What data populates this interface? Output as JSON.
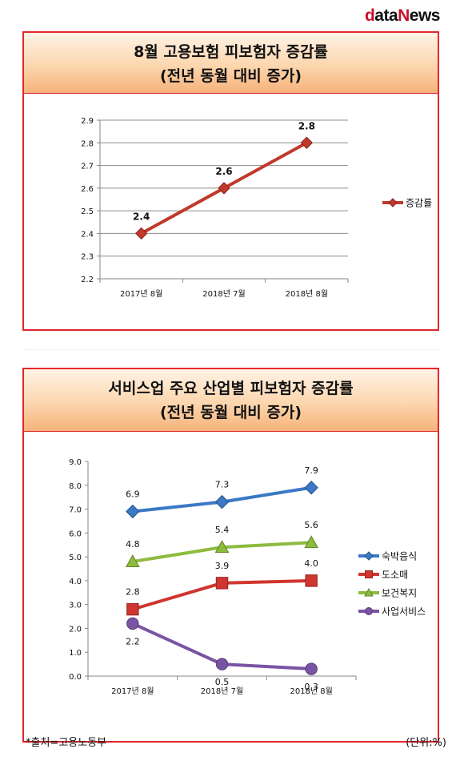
{
  "logo": {
    "p1": "d",
    "p2": "ata",
    "p3": "N",
    "p4": "ews"
  },
  "chart1": {
    "title": "8월 고용보험 피보험자 증감률",
    "subtitle": "(전년 동월 대비 증가)"
  },
  "chart2": {
    "title": "서비스업 주요 산업별 피보험자 증감률",
    "subtitle": "(전년 동월 대비 증가)"
  },
  "footer": {
    "source": "*출처=고용노동부",
    "unit": "(단위:%)"
  },
  "chart_data": [
    {
      "type": "line",
      "categories": [
        "2017년 8월",
        "2018년 7월",
        "2018년 8월"
      ],
      "series": [
        {
          "name": "증감률",
          "values": [
            2.4,
            2.6,
            2.8
          ],
          "color": "#c0392b",
          "marker": "diamond"
        }
      ],
      "ylim": [
        2.2,
        2.9
      ],
      "yticks": [
        "2.2",
        "2.3",
        "2.4",
        "2.5",
        "2.6",
        "2.7",
        "2.8",
        "2.9"
      ],
      "data_labels": [
        "2.4",
        "2.6",
        "2.8"
      ],
      "grid": true,
      "legend": "right"
    },
    {
      "type": "line",
      "categories": [
        "2017년 8월",
        "2018년 7월",
        "2018년 8월"
      ],
      "series": [
        {
          "name": "숙박음식",
          "values": [
            6.9,
            7.3,
            7.9
          ],
          "labels": [
            "6.9",
            "7.3",
            "7.9"
          ],
          "color": "#3b78c6",
          "marker": "diamond"
        },
        {
          "name": "도소매",
          "values": [
            2.8,
            3.9,
            4.0
          ],
          "labels": [
            "2.8",
            "3.9",
            "4.0"
          ],
          "color": "#d0352f",
          "marker": "square"
        },
        {
          "name": "보건복지",
          "values": [
            4.8,
            5.4,
            5.6
          ],
          "labels": [
            "4.8",
            "5.4",
            "5.6"
          ],
          "color": "#8dbb3e",
          "marker": "triangle"
        },
        {
          "name": "사업서비스",
          "values": [
            2.2,
            0.5,
            0.3
          ],
          "labels": [
            "2.2",
            "0.5",
            "0.3"
          ],
          "color": "#7a54a4",
          "marker": "circle"
        }
      ],
      "ylim": [
        0,
        9
      ],
      "yticks": [
        "0.0",
        "1.0",
        "2.0",
        "3.0",
        "4.0",
        "5.0",
        "6.0",
        "7.0",
        "8.0",
        "9.0"
      ],
      "grid": false,
      "legend": "right"
    }
  ]
}
